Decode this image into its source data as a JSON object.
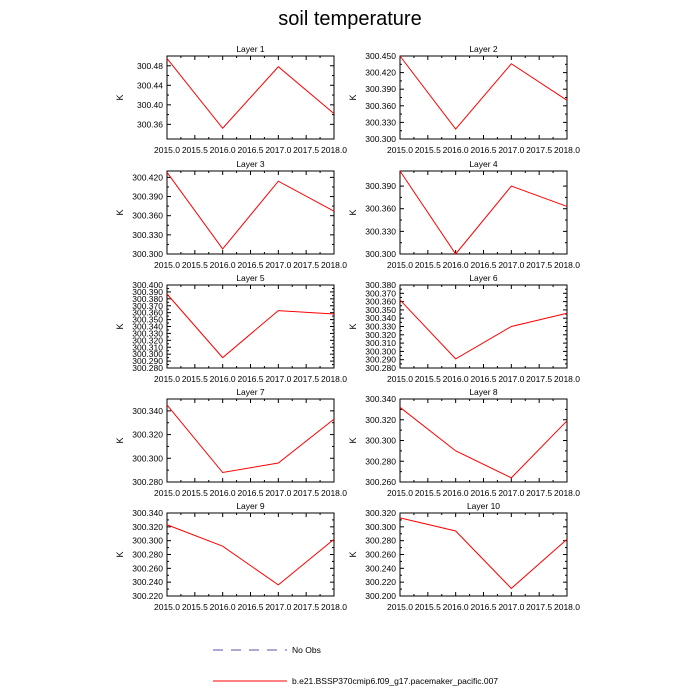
{
  "figure": {
    "title": "soil temperature"
  },
  "legend": {
    "entries": [
      {
        "label": "No Obs",
        "style": "dashed",
        "color": "#5555aa"
      },
      {
        "label": "b.e21.BSSP370cmip6.f09_g17.pacemaker_pacific.007",
        "style": "solid",
        "color": "#ff0000"
      }
    ]
  },
  "colors": {
    "series": "#ff0000",
    "axis": "#000000"
  },
  "chart_data": [
    {
      "type": "line",
      "title": "Layer 1",
      "xlabel": "",
      "ylabel": "K",
      "x": [
        2015.0,
        2016.0,
        2017.0,
        2018.0
      ],
      "xlim": [
        2015.0,
        2018.0
      ],
      "xticks": [
        "2015.0",
        "2015.5",
        "2016.0",
        "2016.5",
        "2017.0",
        "2017.5",
        "2018.0"
      ],
      "ylim": [
        300.33,
        300.5
      ],
      "yticks": [
        "300.36",
        "300.40",
        "300.44",
        "300.48"
      ],
      "series": [
        {
          "name": "b.e21.BSSP370cmip6.f09_g17.pacemaker_pacific.007",
          "values": [
            300.495,
            300.352,
            300.478,
            300.382
          ]
        }
      ]
    },
    {
      "type": "line",
      "title": "Layer 2",
      "xlabel": "",
      "ylabel": "K",
      "x": [
        2015.0,
        2016.0,
        2017.0,
        2018.0
      ],
      "xlim": [
        2015.0,
        2018.0
      ],
      "xticks": [
        "2015.0",
        "2015.5",
        "2016.0",
        "2016.5",
        "2017.0",
        "2017.5",
        "2018.0"
      ],
      "ylim": [
        300.3,
        300.45
      ],
      "yticks": [
        "300.300",
        "300.330",
        "300.360",
        "300.390",
        "300.420",
        "300.450"
      ],
      "series": [
        {
          "name": "b.e21.BSSP370cmip6.f09_g17.pacemaker_pacific.007",
          "values": [
            300.45,
            300.318,
            300.436,
            300.37
          ]
        }
      ]
    },
    {
      "type": "line",
      "title": "Layer 3",
      "xlabel": "",
      "ylabel": "K",
      "x": [
        2015.0,
        2016.0,
        2017.0,
        2018.0
      ],
      "xlim": [
        2015.0,
        2018.0
      ],
      "xticks": [
        "2015.0",
        "2015.5",
        "2016.0",
        "2016.5",
        "2017.0",
        "2017.5",
        "2018.0"
      ],
      "ylim": [
        300.3,
        300.43
      ],
      "yticks": [
        "300.300",
        "300.330",
        "300.360",
        "300.390",
        "300.420"
      ],
      "series": [
        {
          "name": "b.e21.BSSP370cmip6.f09_g17.pacemaker_pacific.007",
          "values": [
            300.428,
            300.308,
            300.414,
            300.367
          ]
        }
      ]
    },
    {
      "type": "line",
      "title": "Layer 4",
      "xlabel": "",
      "ylabel": "K",
      "x": [
        2015.0,
        2016.0,
        2017.0,
        2018.0
      ],
      "xlim": [
        2015.0,
        2018.0
      ],
      "xticks": [
        "2015.0",
        "2015.5",
        "2016.0",
        "2016.5",
        "2017.0",
        "2017.5",
        "2018.0"
      ],
      "ylim": [
        300.3,
        300.41
      ],
      "yticks": [
        "300.300",
        "300.330",
        "300.360",
        "300.390"
      ],
      "series": [
        {
          "name": "b.e21.BSSP370cmip6.f09_g17.pacemaker_pacific.007",
          "values": [
            300.41,
            300.3,
            300.39,
            300.363
          ]
        }
      ]
    },
    {
      "type": "line",
      "title": "Layer 5",
      "xlabel": "",
      "ylabel": "K",
      "x": [
        2015.0,
        2016.0,
        2017.0,
        2018.0
      ],
      "xlim": [
        2015.0,
        2018.0
      ],
      "xticks": [
        "2015.0",
        "2015.5",
        "2016.0",
        "2016.5",
        "2017.0",
        "2017.5",
        "2018.0"
      ],
      "ylim": [
        300.28,
        300.4
      ],
      "yticks": [
        "300.280",
        "300.290",
        "300.300",
        "300.310",
        "300.320",
        "300.330",
        "300.340",
        "300.350",
        "300.360",
        "300.370",
        "300.380",
        "300.390",
        "300.400"
      ],
      "series": [
        {
          "name": "b.e21.BSSP370cmip6.f09_g17.pacemaker_pacific.007",
          "values": [
            300.387,
            300.295,
            300.363,
            300.358
          ]
        }
      ]
    },
    {
      "type": "line",
      "title": "Layer 6",
      "xlabel": "",
      "ylabel": "K",
      "x": [
        2015.0,
        2016.0,
        2017.0,
        2018.0
      ],
      "xlim": [
        2015.0,
        2018.0
      ],
      "xticks": [
        "2015.0",
        "2015.5",
        "2016.0",
        "2016.5",
        "2017.0",
        "2017.5",
        "2018.0"
      ],
      "ylim": [
        300.28,
        300.38
      ],
      "yticks": [
        "300.280",
        "300.290",
        "300.300",
        "300.310",
        "300.320",
        "300.330",
        "300.340",
        "300.350",
        "300.360",
        "300.370",
        "300.380"
      ],
      "series": [
        {
          "name": "b.e21.BSSP370cmip6.f09_g17.pacemaker_pacific.007",
          "values": [
            300.362,
            300.291,
            300.33,
            300.346
          ]
        }
      ]
    },
    {
      "type": "line",
      "title": "Layer 7",
      "xlabel": "",
      "ylabel": "K",
      "x": [
        2015.0,
        2016.0,
        2017.0,
        2018.0
      ],
      "xlim": [
        2015.0,
        2018.0
      ],
      "xticks": [
        "2015.0",
        "2015.5",
        "2016.0",
        "2016.5",
        "2017.0",
        "2017.5",
        "2018.0"
      ],
      "ylim": [
        300.28,
        300.35
      ],
      "yticks": [
        "300.280",
        "300.300",
        "300.320",
        "300.340"
      ],
      "series": [
        {
          "name": "b.e21.BSSP370cmip6.f09_g17.pacemaker_pacific.007",
          "values": [
            300.345,
            300.288,
            300.296,
            300.333
          ]
        }
      ]
    },
    {
      "type": "line",
      "title": "Layer 8",
      "xlabel": "",
      "ylabel": "K",
      "x": [
        2015.0,
        2016.0,
        2017.0,
        2018.0
      ],
      "xlim": [
        2015.0,
        2018.0
      ],
      "xticks": [
        "2015.0",
        "2015.5",
        "2016.0",
        "2016.5",
        "2017.0",
        "2017.5",
        "2018.0"
      ],
      "ylim": [
        300.26,
        300.34
      ],
      "yticks": [
        "300.260",
        "300.280",
        "300.300",
        "300.320",
        "300.340"
      ],
      "series": [
        {
          "name": "b.e21.BSSP370cmip6.f09_g17.pacemaker_pacific.007",
          "values": [
            300.332,
            300.29,
            300.264,
            300.319
          ]
        }
      ]
    },
    {
      "type": "line",
      "title": "Layer 9",
      "xlabel": "",
      "ylabel": "K",
      "x": [
        2015.0,
        2016.0,
        2017.0,
        2018.0
      ],
      "xlim": [
        2015.0,
        2018.0
      ],
      "xticks": [
        "2015.0",
        "2015.5",
        "2016.0",
        "2016.5",
        "2017.0",
        "2017.5",
        "2018.0"
      ],
      "ylim": [
        300.22,
        300.34
      ],
      "yticks": [
        "300.220",
        "300.240",
        "300.260",
        "300.280",
        "300.300",
        "300.320",
        "300.340"
      ],
      "series": [
        {
          "name": "b.e21.BSSP370cmip6.f09_g17.pacemaker_pacific.007",
          "values": [
            300.323,
            300.292,
            300.236,
            300.302
          ]
        }
      ]
    },
    {
      "type": "line",
      "title": "Layer 10",
      "xlabel": "",
      "ylabel": "K",
      "x": [
        2015.0,
        2016.0,
        2017.0,
        2018.0
      ],
      "xlim": [
        2015.0,
        2018.0
      ],
      "xticks": [
        "2015.0",
        "2015.5",
        "2016.0",
        "2016.5",
        "2017.0",
        "2017.5",
        "2018.0"
      ],
      "ylim": [
        300.2,
        300.32
      ],
      "yticks": [
        "300.200",
        "300.220",
        "300.240",
        "300.260",
        "300.280",
        "300.300",
        "300.320"
      ],
      "series": [
        {
          "name": "b.e21.BSSP370cmip6.f09_g17.pacemaker_pacific.007",
          "values": [
            300.313,
            300.294,
            300.211,
            300.282
          ]
        }
      ]
    }
  ]
}
